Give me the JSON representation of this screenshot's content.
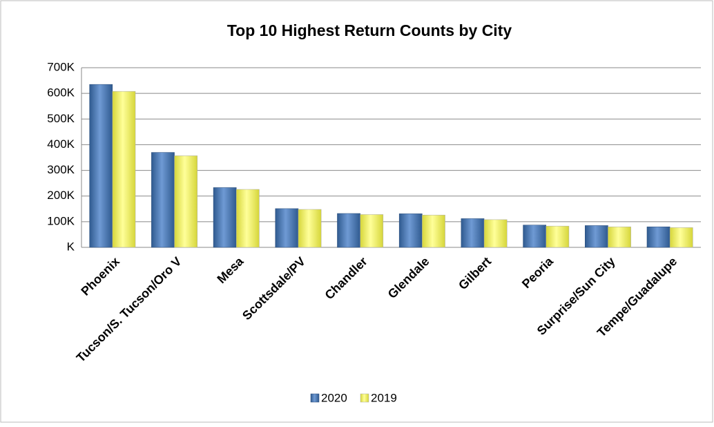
{
  "chart_data": {
    "type": "bar",
    "title": "Top 10 Highest Return Counts by City",
    "categories": [
      "Phoenix",
      "Tucson/S. Tucson/Oro V",
      "Mesa",
      "Scottsdale/PV",
      "Chandler",
      "Glendale",
      "Gilbert",
      "Peoria",
      "Surprise/Sun City",
      "Tempe/Guadalupe"
    ],
    "series": [
      {
        "name": "2020",
        "color": "#4f81bd",
        "values": [
          635000,
          370000,
          233000,
          151000,
          132000,
          131000,
          112000,
          87000,
          85000,
          80000
        ]
      },
      {
        "name": "2019",
        "color": "#ffff66",
        "values": [
          608000,
          357000,
          226000,
          148000,
          128000,
          126000,
          108000,
          83000,
          80000,
          77000
        ]
      }
    ],
    "ylim": [
      0,
      700000
    ],
    "yticks": [
      {
        "value": 0,
        "label": "K"
      },
      {
        "value": 100000,
        "label": "100K"
      },
      {
        "value": 200000,
        "label": "200K"
      },
      {
        "value": 300000,
        "label": "300K"
      },
      {
        "value": 400000,
        "label": "400K"
      },
      {
        "value": 500000,
        "label": "500K"
      },
      {
        "value": 600000,
        "label": "600K"
      },
      {
        "value": 700000,
        "label": "700K"
      }
    ],
    "grid": true,
    "legend": "bottom"
  }
}
